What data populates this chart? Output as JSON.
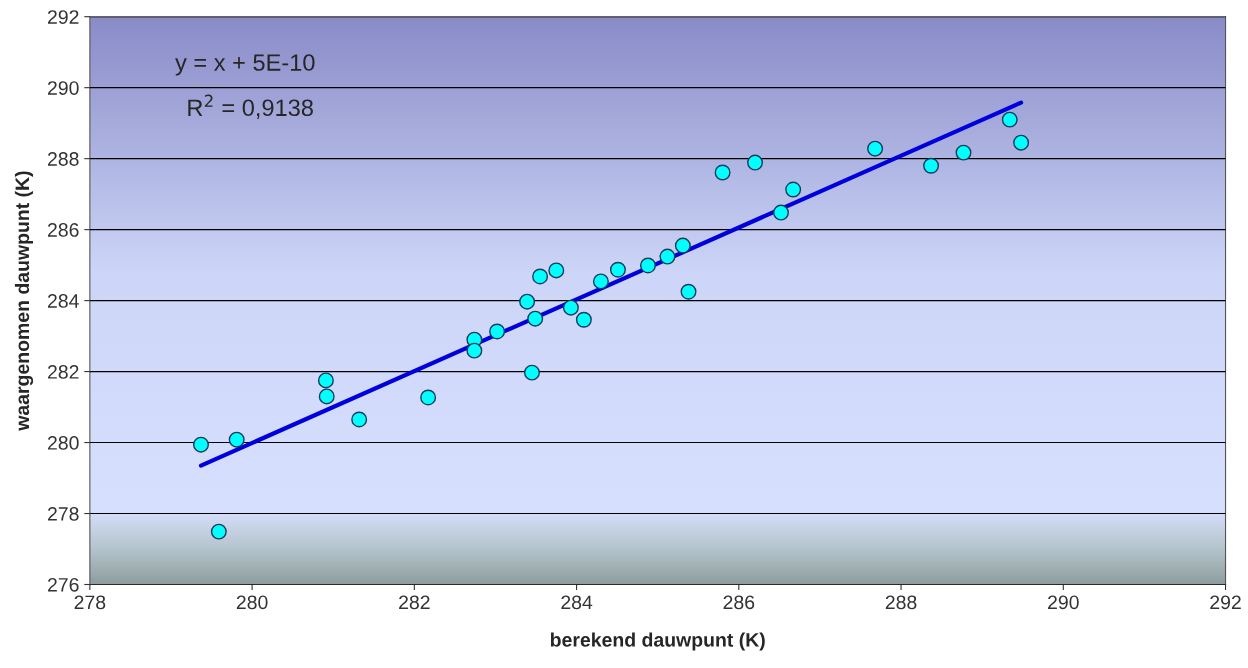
{
  "chart_data": {
    "type": "scatter",
    "xlabel": "berekend dauwpunt (K)",
    "ylabel": "waargenomen dauwpunt (K)",
    "xlim": [
      278,
      292
    ],
    "xticks": [
      278,
      280,
      282,
      284,
      286,
      288,
      290,
      292
    ],
    "ylim": [
      276,
      292
    ],
    "yticks": [
      276,
      278,
      280,
      282,
      284,
      286,
      288,
      290,
      292
    ],
    "grid": "y",
    "legend": false,
    "annotations": [
      "y = x + 5E-10",
      "R$^{2}$ = 0,9138"
    ],
    "series": [
      {
        "color": "#00ffff",
        "marker": "circle",
        "x": [
          279.37,
          279.59,
          279.81,
          280.91,
          280.92,
          281.32,
          282.17,
          282.74,
          282.74,
          283.02,
          283.39,
          283.45,
          283.49,
          283.55,
          283.75,
          283.93,
          284.09,
          284.3,
          284.51,
          284.88,
          285.12,
          285.31,
          285.38,
          285.8,
          286.2,
          286.52,
          286.67,
          287.68,
          288.37,
          288.77,
          289.34,
          289.48
        ],
        "values": [
          279.94,
          277.49,
          280.08,
          281.75,
          281.3,
          280.65,
          281.27,
          282.9,
          282.59,
          283.13,
          283.97,
          281.97,
          283.49,
          284.68,
          284.85,
          283.8,
          283.46,
          284.54,
          284.87,
          284.99,
          285.24,
          285.55,
          284.25,
          287.61,
          287.89,
          286.48,
          287.13,
          288.28,
          287.8,
          288.17,
          289.1,
          288.45
        ]
      },
      {
        "type": "line",
        "marker": "none",
        "color": "#0000dd",
        "x": [
          279.37,
          289.48
        ],
        "values": [
          279.35,
          289.58
        ]
      }
    ]
  }
}
